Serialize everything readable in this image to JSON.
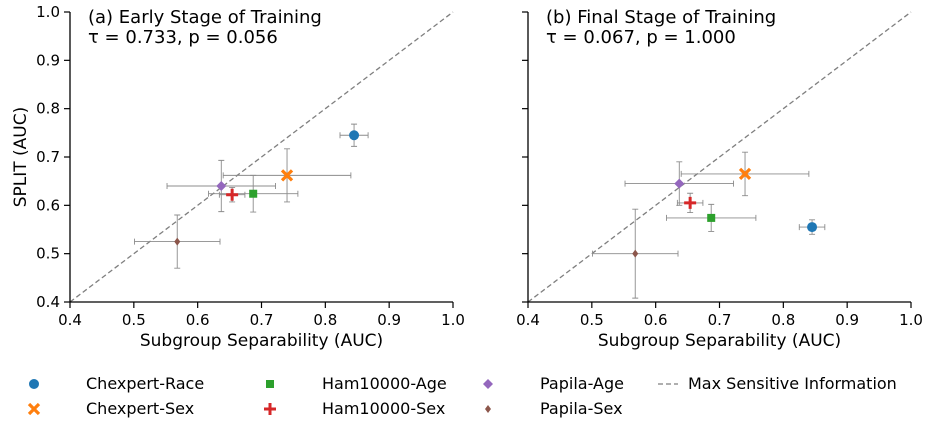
{
  "chart_data": [
    {
      "type": "scatter",
      "title": "(a) Early Stage of Training",
      "subtitle": "τ = 0.733, p = 0.056",
      "xlabel": "Subgroup Separability (AUC)",
      "ylabel": "SPLIT (AUC)",
      "xlim": [
        0.4,
        1.0
      ],
      "ylim": [
        0.4,
        1.0
      ],
      "xticks": [
        "0.4",
        "0.5",
        "0.6",
        "0.7",
        "0.8",
        "0.9",
        "1.0"
      ],
      "yticks": [
        "0.4",
        "0.5",
        "0.6",
        "0.7",
        "0.8",
        "0.9",
        "1.0"
      ],
      "diagonal": true,
      "series": [
        {
          "name": "Chexpert-Race",
          "x": 0.845,
          "y": 0.745,
          "xerr": 0.022,
          "yerr": 0.023
        },
        {
          "name": "Chexpert-Sex",
          "x": 0.74,
          "y": 0.662,
          "xerr": 0.1,
          "yerr": 0.055
        },
        {
          "name": "Ham10000-Age",
          "x": 0.687,
          "y": 0.624,
          "xerr": 0.07,
          "yerr": 0.038
        },
        {
          "name": "Ham10000-Sex",
          "x": 0.654,
          "y": 0.622,
          "xerr": 0.02,
          "yerr": 0.015
        },
        {
          "name": "Papila-Age",
          "x": 0.637,
          "y": 0.64,
          "xerr": 0.085,
          "yerr": 0.053
        },
        {
          "name": "Papila-Sex",
          "x": 0.568,
          "y": 0.525,
          "xerr": 0.067,
          "yerr": 0.055
        }
      ]
    },
    {
      "type": "scatter",
      "title": "(b) Final Stage of Training",
      "subtitle": "τ = 0.067, p = 1.000",
      "xlabel": "Subgroup Separability (AUC)",
      "ylabel": "",
      "xlim": [
        0.4,
        1.0
      ],
      "ylim": [
        0.4,
        1.0
      ],
      "xticks": [
        "0.4",
        "0.5",
        "0.6",
        "0.7",
        "0.8",
        "0.9",
        "1.0"
      ],
      "yticks": [],
      "diagonal": true,
      "series": [
        {
          "name": "Chexpert-Race",
          "x": 0.845,
          "y": 0.555,
          "xerr": 0.02,
          "yerr": 0.015
        },
        {
          "name": "Chexpert-Sex",
          "x": 0.74,
          "y": 0.665,
          "xerr": 0.1,
          "yerr": 0.045
        },
        {
          "name": "Ham10000-Age",
          "x": 0.687,
          "y": 0.574,
          "xerr": 0.07,
          "yerr": 0.028
        },
        {
          "name": "Ham10000-Sex",
          "x": 0.654,
          "y": 0.605,
          "xerr": 0.02,
          "yerr": 0.02
        },
        {
          "name": "Papila-Age",
          "x": 0.637,
          "y": 0.645,
          "xerr": 0.085,
          "yerr": 0.045
        },
        {
          "name": "Papila-Sex",
          "x": 0.568,
          "y": 0.5,
          "xerr": 0.067,
          "yerr": 0.092
        }
      ]
    }
  ],
  "legend": {
    "placement": "bottom",
    "items": [
      {
        "label": "Chexpert-Race",
        "marker": "circle",
        "color": "#1f77b4"
      },
      {
        "label": "Chexpert-Sex",
        "marker": "x",
        "color": "#ff7f0e"
      },
      {
        "label": "Ham10000-Age",
        "marker": "square",
        "color": "#2ca02c"
      },
      {
        "label": "Ham10000-Sex",
        "marker": "plus",
        "color": "#d62728"
      },
      {
        "label": "Papila-Age",
        "marker": "diamond",
        "color": "#9467bd"
      },
      {
        "label": "Papila-Sex",
        "marker": "thin-diamond",
        "color": "#8c564b"
      },
      {
        "label": "Max Sensitive Information",
        "marker": "dashed-line",
        "color": "#7f7f7f"
      }
    ]
  },
  "series_styles": {
    "Chexpert-Race": {
      "marker": "circle",
      "color": "#1f77b4"
    },
    "Chexpert-Sex": {
      "marker": "x",
      "color": "#ff7f0e"
    },
    "Ham10000-Age": {
      "marker": "square",
      "color": "#2ca02c"
    },
    "Ham10000-Sex": {
      "marker": "plus",
      "color": "#d62728"
    },
    "Papila-Age": {
      "marker": "diamond",
      "color": "#9467bd"
    },
    "Papila-Sex": {
      "marker": "thin-diamond",
      "color": "#8c564b"
    }
  }
}
